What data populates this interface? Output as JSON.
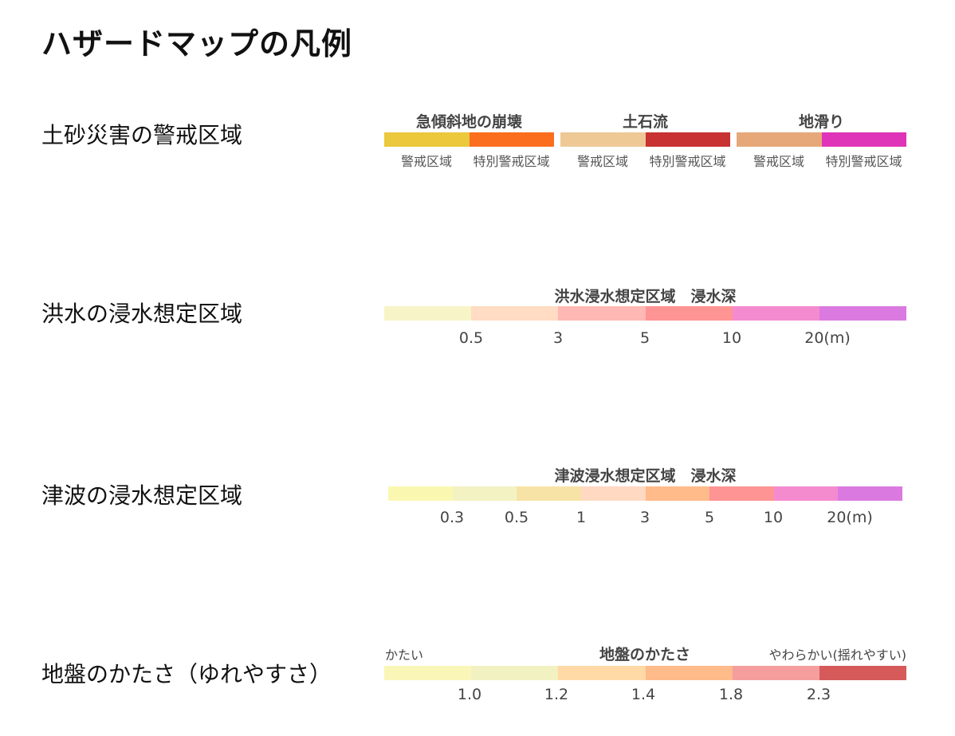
{
  "title": "ハザードマップの凡例",
  "sections": {
    "landslide": {
      "label": "土砂災害の警戒区域",
      "groups": [
        {
          "title": "急傾斜地の崩壊",
          "segments": [
            {
              "label": "警戒区域",
              "color": "#EBC83C"
            },
            {
              "label": "特別警戒区域",
              "color": "#FA6E1E"
            }
          ]
        },
        {
          "title": "土石流",
          "segments": [
            {
              "label": "警戒区域",
              "color": "#EEC895"
            },
            {
              "label": "特別警戒区域",
              "color": "#C83232"
            }
          ]
        },
        {
          "title": "地滑り",
          "segments": [
            {
              "label": "警戒区域",
              "color": "#E6A878"
            },
            {
              "label": "特別警戒区域",
              "color": "#E034B8"
            }
          ]
        }
      ]
    },
    "flood": {
      "label": "洪水の浸水想定区域",
      "title": "洪水浸水想定区域　浸水深",
      "colors": [
        "#F7F5C8",
        "#FFDCC3",
        "#FFB8B3",
        "#FF9494",
        "#F48BCF",
        "#DA7AE0"
      ],
      "ticks": [
        "0.5",
        "3",
        "5",
        "10",
        "20(m)"
      ]
    },
    "tsunami": {
      "label": "津波の浸水想定区域",
      "title": "津波浸水想定区域　浸水深",
      "colors": [
        "#FAF8B0",
        "#F3F2C3",
        "#F8E3A6",
        "#FFD9C2",
        "#FFBB8A",
        "#FF9494",
        "#F48BCF",
        "#DA7AE0"
      ],
      "ticks": [
        "0.3",
        "0.5",
        "1",
        "3",
        "5",
        "10",
        "20(m)"
      ]
    },
    "ground": {
      "label": "地盤のかたさ（ゆれやすさ）",
      "title": "地盤のかたさ",
      "left_label": "かたい",
      "right_label": "やわらかい(揺れやすい)",
      "colors": [
        "#FAF6B8",
        "#F2F1C2",
        "#FFD9A6",
        "#FFBB8A",
        "#F49E9E",
        "#D65A5A"
      ],
      "ticks": [
        "1.0",
        "1.2",
        "1.4",
        "1.8",
        "2.3"
      ]
    }
  }
}
